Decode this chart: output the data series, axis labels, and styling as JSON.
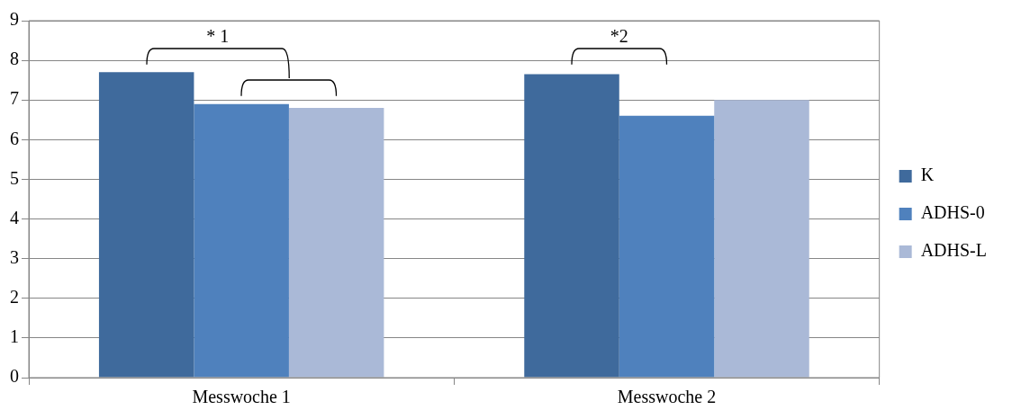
{
  "chart_data": {
    "type": "bar",
    "categories": [
      "Messwoche 1",
      "Messwoche 2"
    ],
    "series": [
      {
        "name": "K",
        "color": "#3f6a9c",
        "values": [
          7.7,
          7.65
        ]
      },
      {
        "name": "ADHS-0",
        "color": "#4f81bd",
        "values": [
          6.9,
          6.6
        ]
      },
      {
        "name": "ADHS-L",
        "color": "#aab9d7",
        "values": [
          6.8,
          7.0
        ]
      }
    ],
    "ylim": [
      0,
      9
    ],
    "yticks": [
      0,
      1,
      2,
      3,
      4,
      5,
      6,
      7,
      8,
      9
    ],
    "grid": "y",
    "legend": "right",
    "annotations": [
      "* 1",
      "*2"
    ]
  }
}
